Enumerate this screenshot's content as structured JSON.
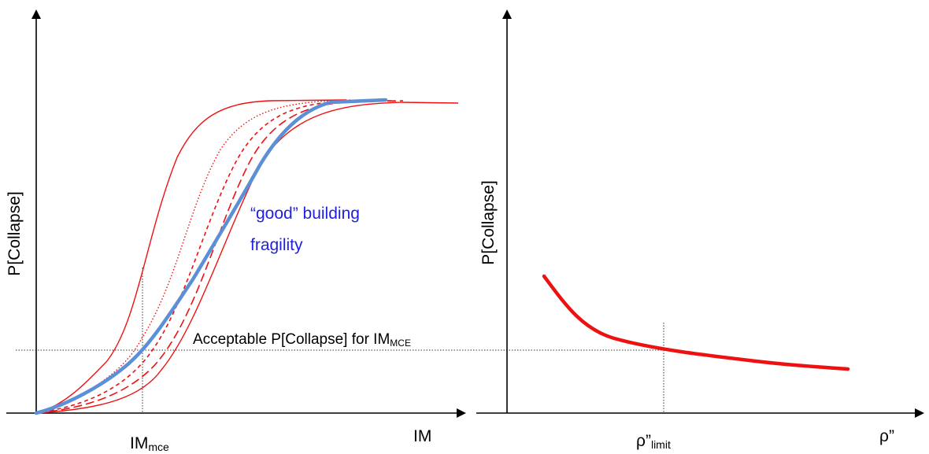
{
  "left_panel": {
    "y_axis_label": "P[Collapse]",
    "x_axis_label": "IM",
    "x_marker_label": {
      "main": "IM",
      "sub": "mce"
    },
    "threshold_label": {
      "main": "Acceptable P[Collapse] for IM",
      "sub": "MCE"
    },
    "annotation": {
      "line1": "“good” building",
      "line2": "fragility"
    }
  },
  "right_panel": {
    "y_axis_label": "P[Collapse]",
    "x_axis_label": "ρ”",
    "x_marker_label": {
      "main": "ρ”",
      "sub": "limit"
    }
  },
  "colors": {
    "axis": "#000000",
    "red_curves": "#ee1111",
    "good_curve": "#5b8fd6",
    "annotation_text": "#2020e0",
    "guide_lines": "#333333"
  }
}
